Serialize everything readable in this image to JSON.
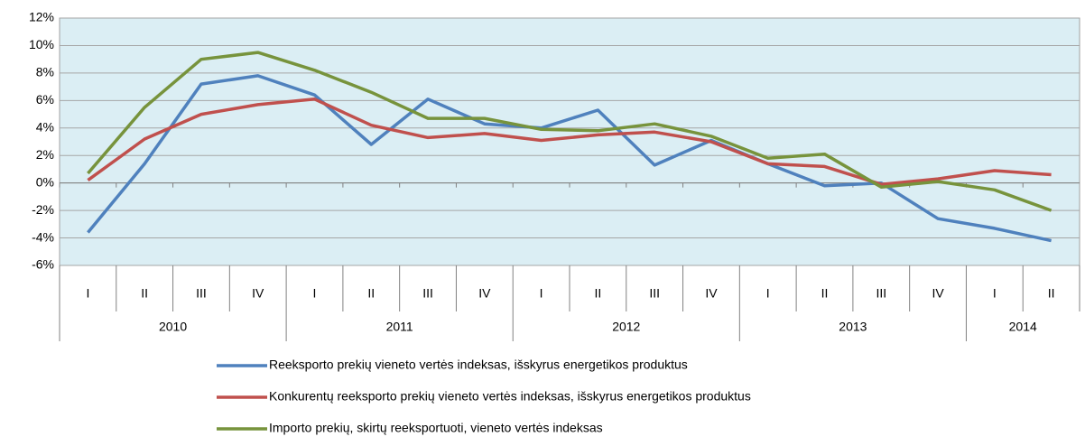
{
  "chart_data": {
    "type": "line",
    "groups": [
      {
        "label": "2010",
        "categories": [
          "I",
          "II",
          "III",
          "IV"
        ]
      },
      {
        "label": "2011",
        "categories": [
          "I",
          "II",
          "III",
          "IV"
        ]
      },
      {
        "label": "2012",
        "categories": [
          "I",
          "II",
          "III",
          "IV"
        ]
      },
      {
        "label": "2013",
        "categories": [
          "I",
          "II",
          "III",
          "IV"
        ]
      },
      {
        "label": "2014",
        "categories": [
          "I",
          "II"
        ]
      }
    ],
    "series": [
      {
        "name": "Reeksporto prekių vieneto vertės indeksas, išskyrus energetikos produktus",
        "color": "#4f81bd",
        "values": [
          -3.6,
          1.4,
          7.2,
          7.8,
          6.4,
          2.8,
          6.1,
          4.3,
          4.0,
          5.3,
          1.3,
          3.1,
          1.4,
          -0.2,
          0.0,
          -2.6,
          -3.3,
          -4.2
        ]
      },
      {
        "name": "Konkurentų reeksporto prekių vieneto vertės indeksas, išskyrus energetikos produktus",
        "color": "#c0504d",
        "values": [
          0.2,
          3.2,
          5.0,
          5.7,
          6.1,
          4.2,
          3.3,
          3.6,
          3.1,
          3.5,
          3.7,
          3.0,
          1.4,
          1.2,
          -0.1,
          0.3,
          0.9,
          0.6
        ]
      },
      {
        "name": "Importo prekių, skirtų reeksportuoti, vieneto vertės indeksas",
        "color": "#77933c",
        "values": [
          0.7,
          5.5,
          9.0,
          9.5,
          8.2,
          6.6,
          4.7,
          4.7,
          3.9,
          3.8,
          4.3,
          3.4,
          1.8,
          2.1,
          -0.3,
          0.1,
          -0.5,
          -2.0
        ]
      }
    ],
    "ylim": [
      -6,
      12
    ],
    "yticks": [
      {
        "value": -6,
        "label": "-6%"
      },
      {
        "value": -4,
        "label": "-4%"
      },
      {
        "value": -2,
        "label": "-2%"
      },
      {
        "value": 0,
        "label": "0%"
      },
      {
        "value": 2,
        "label": "2%"
      },
      {
        "value": 4,
        "label": "4%"
      },
      {
        "value": 6,
        "label": "6%"
      },
      {
        "value": 8,
        "label": "8%"
      },
      {
        "value": 10,
        "label": "10%"
      },
      {
        "value": 12,
        "label": "12%"
      }
    ],
    "grid": true,
    "background": "#dbeef4"
  }
}
